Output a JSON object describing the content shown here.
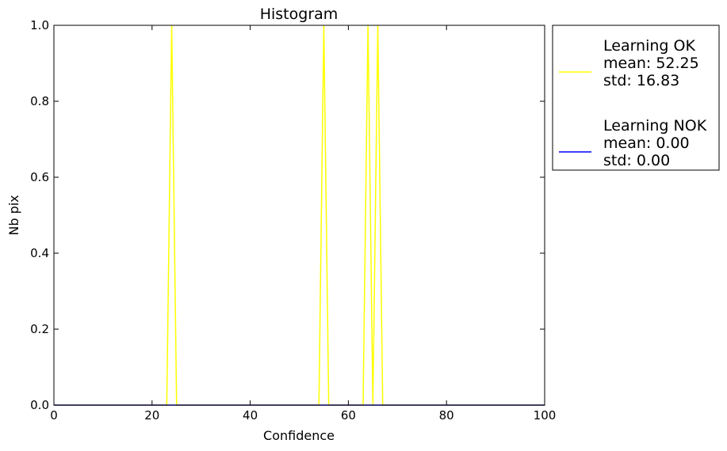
{
  "chart_data": {
    "type": "line",
    "title": "Histogram",
    "xlabel": "Confidence",
    "ylabel": "Nb pix",
    "xlim": [
      0,
      100
    ],
    "ylim": [
      0,
      1.0
    ],
    "x_ticks": [
      "0",
      "20",
      "40",
      "60",
      "80",
      "100"
    ],
    "y_ticks": [
      "0.0",
      "0.2",
      "0.4",
      "0.6",
      "0.8",
      "1.0"
    ],
    "grid": false,
    "legend_position": "outside-right",
    "series": [
      {
        "name": "Learning OK",
        "legend_lines": [
          "Learning OK",
          "mean: 52.25",
          "std: 16.83"
        ],
        "color": "#ffff00",
        "spikes_at": [
          24,
          55,
          64,
          66
        ]
      },
      {
        "name": "Learning NOK",
        "legend_lines": [
          "Learning NOK",
          "mean: 0.00",
          "std: 0.00"
        ],
        "color": "#0000ff",
        "spikes_at": []
      }
    ]
  }
}
